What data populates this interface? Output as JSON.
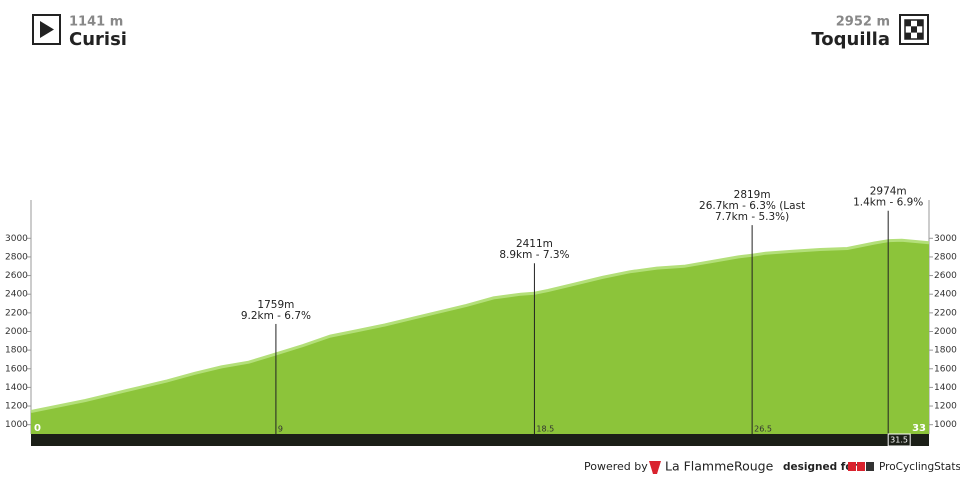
{
  "header": {
    "start": {
      "altitude": "1141 m",
      "name": "Curisi"
    },
    "finish": {
      "altitude": "2952 m",
      "name": "Toquilla"
    }
  },
  "chart_data": {
    "type": "area",
    "color": "#8cc43a",
    "edge_color": "#b3df79",
    "x": [
      0,
      1,
      2,
      3,
      4,
      5,
      6,
      7,
      8,
      9,
      10,
      11,
      12,
      13,
      14,
      15,
      16,
      17,
      18,
      18.5,
      19,
      20,
      21,
      22,
      23,
      24,
      25,
      26,
      26.5,
      27,
      28,
      29,
      30,
      31,
      31.5,
      32,
      33
    ],
    "values": [
      1141,
      1200,
      1260,
      1330,
      1400,
      1470,
      1550,
      1620,
      1670,
      1759,
      1850,
      1950,
      2010,
      2070,
      2140,
      2210,
      2280,
      2360,
      2400,
      2411,
      2440,
      2510,
      2580,
      2640,
      2680,
      2700,
      2750,
      2800,
      2819,
      2840,
      2860,
      2880,
      2890,
      2950,
      2974,
      2980,
      2952
    ],
    "xlim": [
      0,
      33
    ],
    "xticks": [
      0,
      9,
      18.5,
      26.5,
      31.5,
      33
    ],
    "ylim": [
      900,
      3250
    ],
    "yticks": [
      1000,
      1200,
      1400,
      1600,
      1800,
      2000,
      2200,
      2400,
      2600,
      2800,
      3000
    ],
    "markers": [
      {
        "x": 9,
        "elevation": {
          "value": 1759,
          "label": "1759m"
        },
        "lines": [
          "9.2km - 6.7%"
        ]
      },
      {
        "x": 18.5,
        "elevation": {
          "value": 2411,
          "label": "2411m"
        },
        "lines": [
          "8.9km - 7.3%"
        ]
      },
      {
        "x": 26.5,
        "elevation": {
          "value": 2819,
          "label": "2819m"
        },
        "lines": [
          "26.7km - 6.3% (Last",
          "7.7km - 5.3%)"
        ]
      },
      {
        "x": 31.5,
        "elevation": {
          "value": 2974,
          "label": "2974m"
        },
        "lines": [
          "1.4km - 6.9%"
        ]
      }
    ]
  },
  "footer": {
    "powered": "Powered by",
    "brand": "La FlammeRouge",
    "designed": "designed for",
    "site": "ProCyclingStats"
  }
}
